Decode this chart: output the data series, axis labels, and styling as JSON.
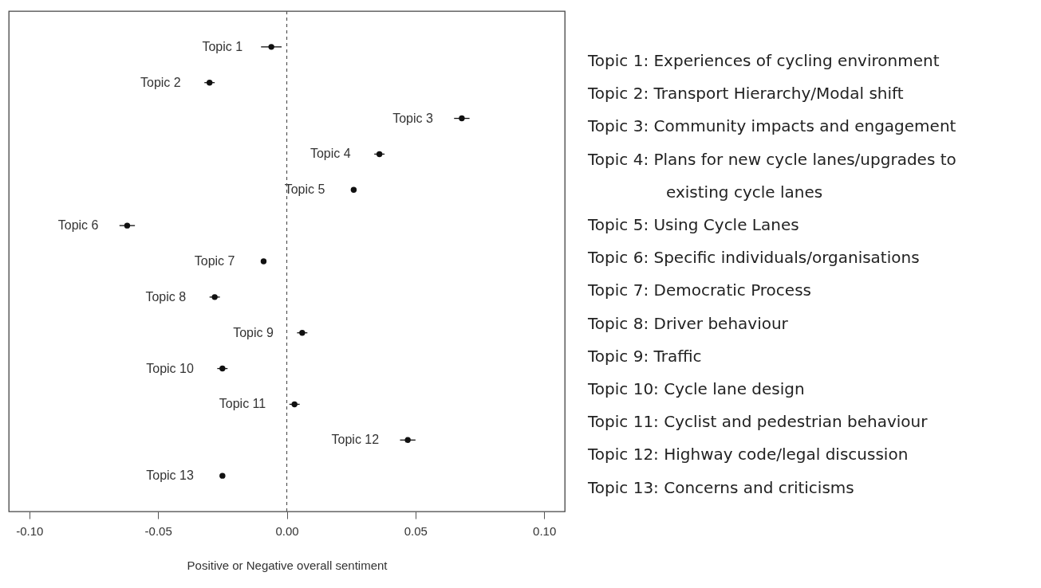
{
  "chart_data": {
    "type": "scatter",
    "orientation": "horizontal",
    "xlabel": "Positive or Negative overall sentiment",
    "categories": [
      "Topic 1",
      "Topic 2",
      "Topic 3",
      "Topic 4",
      "Topic 5",
      "Topic 6",
      "Topic 7",
      "Topic 8",
      "Topic 9",
      "Topic 10",
      "Topic 11",
      "Topic 12",
      "Topic 13"
    ],
    "series": [
      {
        "color": "#111111",
        "values": [
          -0.006,
          -0.03,
          0.068,
          0.036,
          0.026,
          -0.062,
          -0.009,
          -0.028,
          0.006,
          -0.025,
          0.003,
          0.047,
          -0.025
        ],
        "errors": [
          0.004,
          0.002,
          0.003,
          0.002,
          null,
          0.003,
          null,
          0.002,
          0.002,
          0.002,
          0.002,
          0.003,
          null
        ]
      }
    ],
    "xlim": [
      -0.108,
      0.108
    ],
    "xticks": [
      {
        "value": -0.1,
        "label": "-0.10"
      },
      {
        "value": -0.05,
        "label": "-0.05"
      },
      {
        "value": 0,
        "label": "0.00"
      },
      {
        "value": 0.05,
        "label": "0.05"
      },
      {
        "value": 0.1,
        "label": "0.10"
      }
    ],
    "ref_lines": [
      {
        "axis": "x",
        "value": 0,
        "line_style": "dashed",
        "color": "#555555"
      }
    ],
    "marker": "circle",
    "grid": false,
    "annotations": [
      "Topic 1: Experiences of cycling environment",
      "Topic 2: Transport Hierarchy/Modal shift",
      "Topic 3: Community impacts and engagement",
      "Topic 4: Plans for new cycle lanes/upgrades to existing cycle lanes",
      "Topic 5: Using Cycle Lanes",
      "Topic 6: Specific individuals/organisations",
      "Topic 7: Democratic Process",
      "Topic 8: Driver behaviour",
      "Topic 9: Traffic",
      "Topic 10: Cycle lane design",
      "Topic 11: Cyclist and pedestrian behaviour",
      "Topic 12: Highway code/legal discussion",
      "Topic 13: Concerns and criticisms"
    ]
  }
}
